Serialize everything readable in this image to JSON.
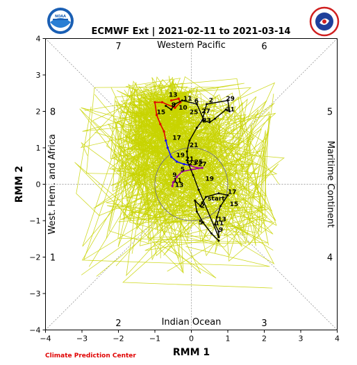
{
  "title": "ECMWF Ext | 2021-02-11 to 2021-03-14",
  "credit": "Climate Prediction Center",
  "logos": {
    "left": {
      "name": "noaa-logo",
      "text": "NOAA"
    },
    "right": {
      "name": "nws-logo",
      "text": "NATIONAL WEATHER SERVICE"
    }
  },
  "chart_data": {
    "type": "line",
    "xlabel": "RMM 1",
    "ylabel": "RMM 2",
    "xlim": [
      -4,
      4
    ],
    "ylim": [
      -4,
      4
    ],
    "xticks": [
      -4,
      -3,
      -2,
      -1,
      0,
      1,
      2,
      3,
      4
    ],
    "yticks": [
      -4,
      -3,
      -2,
      -1,
      0,
      1,
      2,
      3,
      4
    ],
    "xtick_labels": [
      "−4",
      "−3",
      "−2",
      "−1",
      "0",
      "1",
      "2",
      "3",
      "4"
    ],
    "ytick_labels": [
      "−4",
      "−3",
      "−2",
      "−1",
      "0",
      "1",
      "2",
      "3",
      "4"
    ],
    "grid": "dashed diagonals and zero lines",
    "unit_circle_radius": 1,
    "regions": {
      "top": "Western Pacific",
      "bottom": "Indian Ocean",
      "left": "West. Hem. and Africa",
      "right": "Maritime Continent"
    },
    "phase_labels": [
      {
        "label": "1",
        "x": -3.8,
        "y": -2.0
      },
      {
        "label": "2",
        "x": -2.0,
        "y": -3.8
      },
      {
        "label": "3",
        "x": 2.0,
        "y": -3.8
      },
      {
        "label": "4",
        "x": 3.8,
        "y": -2.0
      },
      {
        "label": "5",
        "x": 3.8,
        "y": 2.0
      },
      {
        "label": "6",
        "x": 2.0,
        "y": 3.8
      },
      {
        "label": "7",
        "x": -2.0,
        "y": 3.8
      },
      {
        "label": "8",
        "x": -3.8,
        "y": 2.0
      }
    ],
    "observed": {
      "color": "#000000",
      "points": [
        [
          0.75,
          -1.55
        ],
        [
          0.55,
          -1.35
        ],
        [
          0.32,
          -1.05
        ],
        [
          0.15,
          -0.75
        ],
        [
          0.1,
          -0.45
        ],
        [
          0.25,
          -0.6
        ],
        [
          0.3,
          -0.5
        ],
        [
          0.4,
          -0.35
        ],
        [
          0.75,
          -0.25
        ],
        [
          1.0,
          -0.3
        ],
        [
          0.8,
          -0.6
        ],
        [
          0.7,
          -0.9
        ],
        [
          0.65,
          -1.1
        ],
        [
          0.75,
          -1.3
        ],
        [
          0.75,
          -1.45
        ],
        [
          0.2,
          -0.15
        ],
        [
          0.05,
          0.25
        ],
        [
          -0.1,
          0.6
        ],
        [
          -0.12,
          0.9
        ],
        [
          -0.05,
          1.2
        ],
        [
          0.15,
          1.55
        ],
        [
          0.3,
          1.75
        ],
        [
          0.42,
          2.2
        ],
        [
          1.0,
          2.3
        ],
        [
          1.05,
          2.0
        ],
        [
          0.95,
          2.05
        ],
        [
          0.65,
          1.8
        ],
        [
          0.5,
          1.7
        ],
        [
          0.35,
          1.75
        ],
        [
          0.15,
          2.2
        ],
        [
          -0.25,
          2.3
        ],
        [
          -0.45,
          2.2
        ],
        [
          -0.55,
          2.05
        ],
        [
          -0.7,
          2.15
        ]
      ],
      "day_labels": [
        {
          "label": "start",
          "x": 0.45,
          "y": -0.45
        },
        {
          "label": "2",
          "x": 0.25,
          "y": -0.65
        },
        {
          "label": "5",
          "x": 0.2,
          "y": -1.1
        },
        {
          "label": "9",
          "x": 0.75,
          "y": -1.3
        },
        {
          "label": "13",
          "x": 0.72,
          "y": -1.02
        },
        {
          "label": "11",
          "x": 0.65,
          "y": -1.12
        },
        {
          "label": "15",
          "x": 1.05,
          "y": -0.6
        },
        {
          "label": "17",
          "x": 1.0,
          "y": -0.27
        },
        {
          "label": "19",
          "x": 0.38,
          "y": 0.1
        },
        {
          "label": "21",
          "x": -0.05,
          "y": 1.02
        },
        {
          "label": "23",
          "x": 0.3,
          "y": 1.7
        },
        {
          "label": "25",
          "x": -0.05,
          "y": 1.92
        },
        {
          "label": "27",
          "x": 0.28,
          "y": 1.95
        },
        {
          "label": "29",
          "x": 0.95,
          "y": 2.3
        },
        {
          "label": "31",
          "x": 0.95,
          "y": 2.0
        },
        {
          "label": "2",
          "x": 0.48,
          "y": 2.25
        },
        {
          "label": "6",
          "x": 0.08,
          "y": 2.23
        },
        {
          "label": "8",
          "x": -0.55,
          "y": 2.12
        },
        {
          "label": "10",
          "x": -0.35,
          "y": 2.05
        },
        {
          "label": "11",
          "x": -0.22,
          "y": 2.3
        }
      ]
    },
    "forecast_mean": {
      "segments": [
        {
          "color": "#e00000",
          "points": [
            [
              -0.55,
              2.3
            ],
            [
              -0.35,
              2.35
            ],
            [
              -0.3,
              2.25
            ],
            [
              -0.45,
              2.1
            ],
            [
              -0.8,
              2.25
            ],
            [
              -1.0,
              2.25
            ],
            [
              -0.95,
              1.9
            ],
            [
              -0.85,
              1.65
            ],
            [
              -0.75,
              1.45
            ],
            [
              -0.7,
              1.2
            ]
          ]
        },
        {
          "color": "#1010ff",
          "points": [
            [
              -0.7,
              1.2
            ],
            [
              -0.65,
              1.0
            ],
            [
              -0.55,
              0.75
            ],
            [
              -0.4,
              0.62
            ],
            [
              -0.2,
              0.55
            ],
            [
              -0.05,
              0.52
            ]
          ]
        },
        {
          "color": "#a000a0",
          "points": [
            [
              -0.05,
              0.52
            ],
            [
              0.15,
              0.45
            ],
            [
              0.3,
              0.45
            ],
            [
              0.0,
              0.4
            ],
            [
              -0.25,
              0.35
            ],
            [
              -0.4,
              0.2
            ],
            [
              -0.5,
              0.05
            ],
            [
              -0.52,
              -0.05
            ]
          ]
        }
      ],
      "day_labels": [
        {
          "label": "13",
          "x": -0.62,
          "y": 2.4
        },
        {
          "label": "15",
          "x": -0.95,
          "y": 1.92
        },
        {
          "label": "17",
          "x": -0.52,
          "y": 1.22
        },
        {
          "label": "19",
          "x": -0.42,
          "y": 0.74
        },
        {
          "label": "21",
          "x": -0.17,
          "y": 0.64
        },
        {
          "label": "23",
          "x": -0.08,
          "y": 0.52
        },
        {
          "label": "25",
          "x": 0.08,
          "y": 0.55
        },
        {
          "label": "27",
          "x": 0.18,
          "y": 0.5
        },
        {
          "label": "5",
          "x": -0.3,
          "y": 0.35
        },
        {
          "label": "9",
          "x": -0.52,
          "y": 0.2
        },
        {
          "label": "11",
          "x": -0.5,
          "y": 0.05
        },
        {
          "label": "13",
          "x": -0.45,
          "y": -0.08
        }
      ]
    },
    "ensemble": {
      "color": "#c8d400",
      "member_count": 51,
      "start": [
        -0.55,
        2.3
      ]
    }
  }
}
